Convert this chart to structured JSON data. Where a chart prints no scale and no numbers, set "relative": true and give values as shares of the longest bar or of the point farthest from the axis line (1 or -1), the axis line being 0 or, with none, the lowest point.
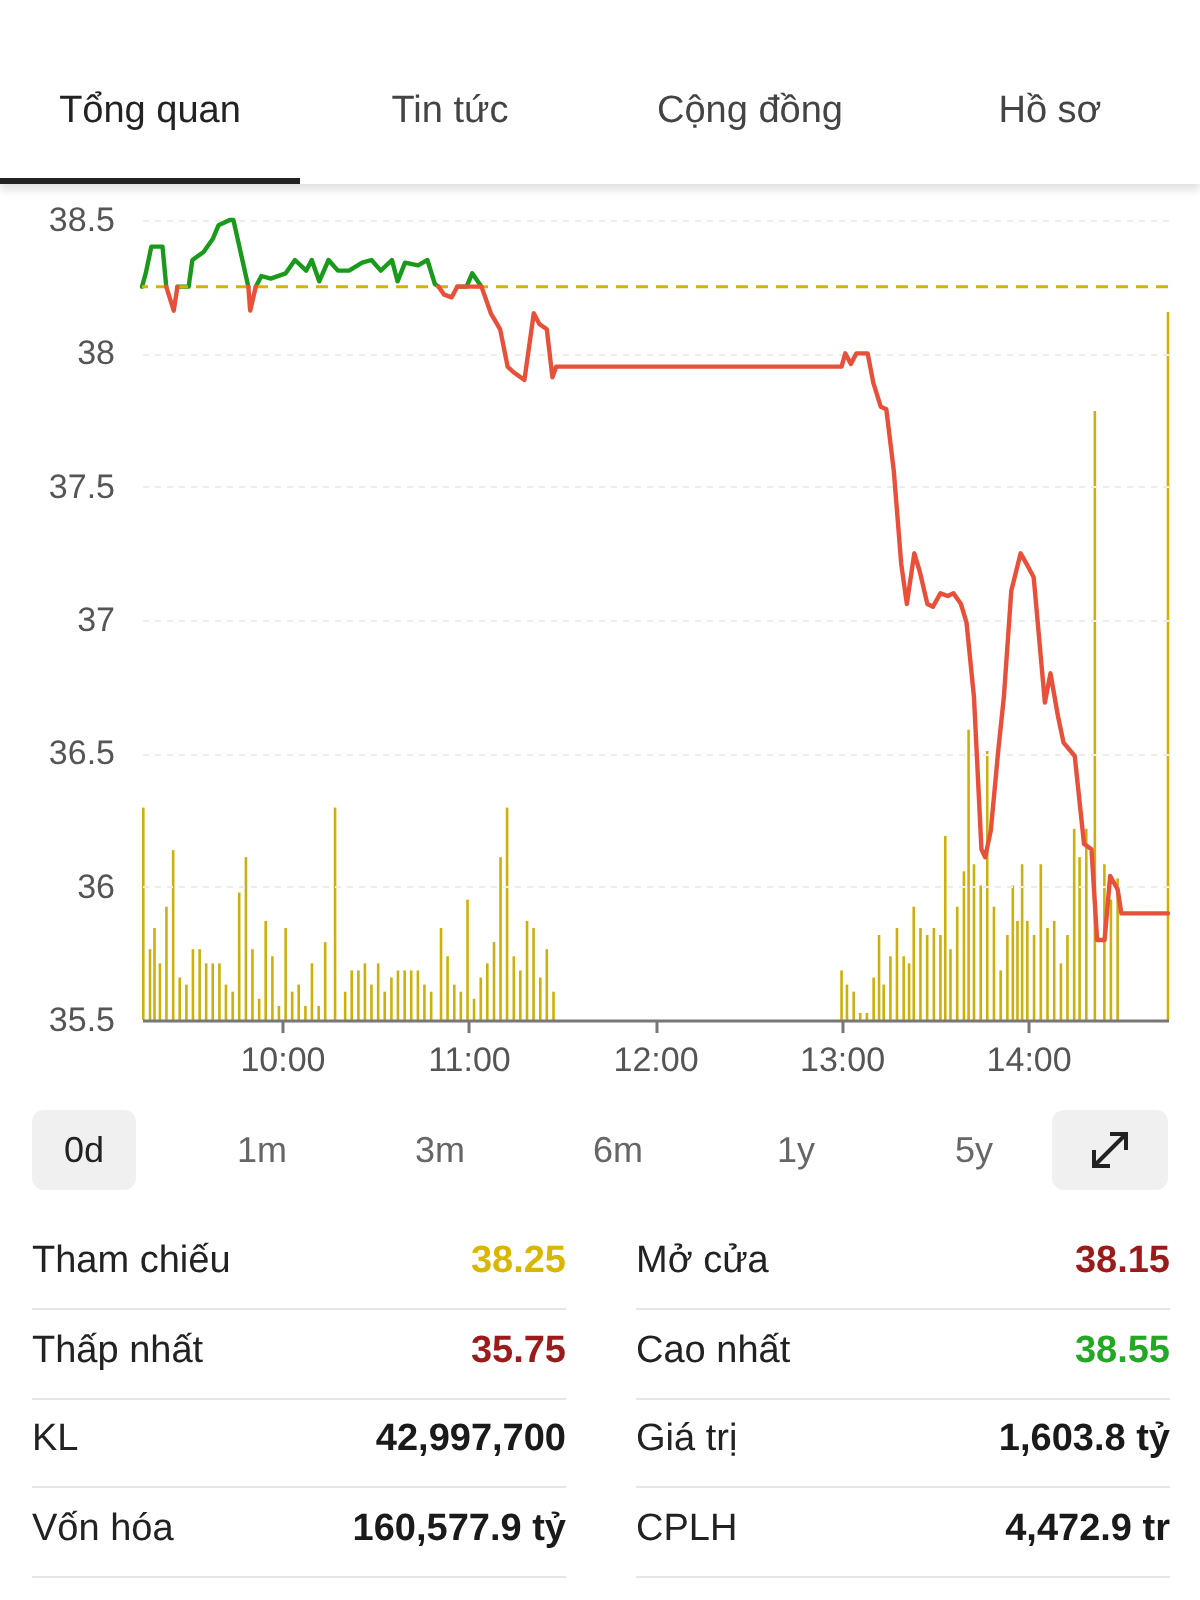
{
  "chart_data": [
    {
      "type": "other",
      "categories": [
        "Tổng quan",
        "Tin tức",
        "Cộng đồng",
        "Hồ sơ"
      ]
    },
    {
      "type": "line",
      "xlim": [
        9.25,
        14.75
      ],
      "xticks": [
        {
          "value": 10,
          "label": "10:00"
        },
        {
          "value": 11,
          "label": "11:00"
        },
        {
          "value": 12,
          "label": "12:00"
        },
        {
          "value": 13,
          "label": "13:00"
        },
        {
          "value": 14,
          "label": "14:00"
        }
      ],
      "ylim": [
        35.5,
        38.5
      ],
      "yticks": [
        35.5,
        36,
        36.5,
        37,
        37.5,
        38,
        38.5
      ],
      "grid": "y",
      "line_style": "solid",
      "marker": "none",
      "ref_lines": [
        {
          "axis": "y",
          "value": 38.25,
          "color": "#d4b400",
          "line_style": "dashed"
        }
      ],
      "series": [
        {
          "color": "#1a9a1a",
          "x": [
            9.25,
            9.27,
            9.3,
            9.36,
            9.38,
            9.42,
            9.44,
            9.5,
            9.52,
            9.58,
            9.63,
            9.66,
            9.72,
            9.74,
            9.82,
            9.83,
            9.86,
            9.89,
            9.94,
            10.02,
            10.07,
            10.13,
            10.16,
            10.2,
            10.25,
            10.3,
            10.36,
            10.43,
            10.48,
            10.53,
            10.59,
            10.62,
            10.66,
            10.73,
            10.78,
            10.82,
            10.84,
            10.87,
            10.91,
            10.94,
            10.99,
            11.02,
            11.07
          ],
          "values": [
            38.25,
            38.3,
            38.4,
            38.4,
            38.25,
            null,
            38.25,
            38.25,
            38.35,
            38.38,
            38.43,
            38.48,
            38.5,
            38.5,
            38.25,
            null,
            38.25,
            38.29,
            38.28,
            38.3,
            38.35,
            38.31,
            38.35,
            38.27,
            38.35,
            38.31,
            38.31,
            38.34,
            38.35,
            38.31,
            38.35,
            38.27,
            38.34,
            38.33,
            38.35,
            38.26,
            38.25,
            null,
            null,
            38.25,
            38.25,
            38.3,
            38.25
          ]
        },
        {
          "color": "#e8503a",
          "x": [
            9.38,
            9.42,
            9.44,
            9.6,
            9.82,
            9.83,
            9.86,
            10.3,
            10.84,
            10.87,
            10.91,
            10.94,
            11.07,
            11.12,
            11.17,
            11.21,
            11.24,
            11.3,
            11.35,
            11.38,
            11.42,
            11.45,
            11.47,
            13.0,
            13.02,
            13.05,
            13.08,
            13.14,
            13.17,
            13.21,
            13.24,
            13.28,
            13.32,
            13.35,
            13.39,
            13.42,
            13.46,
            13.49,
            13.53,
            13.57,
            13.6,
            13.64,
            13.67,
            13.71,
            13.75,
            13.77,
            13.8,
            13.84,
            13.87,
            13.91,
            13.96,
            14.0,
            14.03,
            14.09,
            14.12,
            14.16,
            14.19,
            14.25,
            14.3,
            14.34,
            14.37,
            14.41,
            14.44,
            14.48,
            14.5,
            14.75
          ],
          "values": [
            38.25,
            38.16,
            38.25,
            null,
            38.25,
            38.16,
            38.25,
            null,
            38.25,
            38.22,
            38.21,
            38.25,
            38.25,
            38.15,
            38.09,
            37.95,
            37.93,
            37.9,
            38.15,
            38.11,
            38.09,
            37.91,
            37.95,
            37.95,
            38.0,
            37.96,
            38.0,
            38.0,
            37.89,
            37.8,
            37.79,
            37.56,
            37.21,
            37.06,
            37.25,
            37.18,
            37.06,
            37.05,
            37.1,
            37.09,
            37.1,
            37.06,
            36.99,
            36.71,
            36.14,
            36.11,
            36.21,
            36.51,
            36.71,
            37.11,
            37.25,
            37.2,
            37.16,
            36.69,
            36.8,
            36.64,
            36.54,
            36.49,
            36.16,
            36.14,
            35.8,
            35.8,
            36.04,
            35.99,
            35.9,
            35.9
          ]
        }
      ]
    },
    {
      "type": "bar",
      "relative": true,
      "tick_labels": false,
      "color": "#cdb00c",
      "xlim": [
        9.25,
        14.75
      ],
      "x": [
        9.257,
        9.293,
        9.317,
        9.346,
        9.381,
        9.417,
        9.452,
        9.488,
        9.523,
        9.559,
        9.594,
        9.629,
        9.665,
        9.7,
        9.736,
        9.771,
        9.807,
        9.842,
        9.878,
        9.913,
        9.949,
        9.984,
        10.02,
        10.055,
        10.09,
        10.126,
        10.161,
        10.197,
        10.232,
        10.285,
        10.339,
        10.374,
        10.41,
        10.445,
        10.48,
        10.516,
        10.551,
        10.587,
        10.622,
        10.658,
        10.693,
        10.729,
        10.764,
        10.8,
        10.853,
        10.888,
        10.924,
        10.959,
        10.995,
        11.03,
        11.066,
        11.101,
        11.137,
        11.172,
        11.207,
        11.243,
        11.278,
        11.314,
        11.349,
        11.385,
        11.42,
        11.456,
        13.0,
        13.029,
        13.065,
        13.1,
        13.136,
        13.172,
        13.201,
        13.226,
        13.262,
        13.297,
        13.333,
        13.362,
        13.387,
        13.423,
        13.459,
        13.495,
        13.53,
        13.556,
        13.584,
        13.62,
        13.656,
        13.681,
        13.71,
        13.746,
        13.781,
        13.817,
        13.853,
        13.889,
        13.918,
        13.943,
        13.968,
        13.996,
        14.032,
        14.068,
        14.104,
        14.14,
        14.176,
        14.211,
        14.247,
        14.276,
        14.312,
        14.358,
        14.409,
        14.444,
        14.48,
        14.75
      ],
      "values": [
        0.3,
        0.1,
        0.13,
        0.08,
        0.16,
        0.24,
        0.06,
        0.05,
        0.1,
        0.1,
        0.08,
        0.08,
        0.08,
        0.05,
        0.04,
        0.18,
        0.23,
        0.1,
        0.03,
        0.14,
        0.09,
        0.02,
        0.13,
        0.04,
        0.05,
        0.02,
        0.08,
        0.02,
        0.11,
        0.3,
        0.04,
        0.07,
        0.07,
        0.08,
        0.05,
        0.08,
        0.04,
        0.06,
        0.07,
        0.07,
        0.07,
        0.07,
        0.05,
        0.04,
        0.13,
        0.09,
        0.05,
        0.04,
        0.17,
        0.03,
        0.06,
        0.08,
        0.11,
        0.23,
        0.3,
        0.09,
        0.07,
        0.14,
        0.13,
        0.06,
        0.1,
        0.04,
        0.07,
        0.05,
        0.04,
        0.01,
        0.01,
        0.06,
        0.12,
        0.05,
        0.09,
        0.13,
        0.09,
        0.08,
        0.16,
        0.13,
        0.12,
        0.13,
        0.12,
        0.26,
        0.1,
        0.16,
        0.21,
        0.41,
        0.22,
        0.19,
        0.38,
        0.16,
        0.07,
        0.12,
        0.19,
        0.14,
        0.22,
        0.14,
        0.12,
        0.22,
        0.13,
        0.14,
        0.08,
        0.12,
        0.27,
        0.23,
        0.27,
        0.86,
        0.22,
        0.17,
        0.2,
        1
      ]
    },
    {
      "type": "other",
      "categories": [
        "0d",
        "1m",
        "3m",
        "6m",
        "1y",
        "5y"
      ]
    },
    {
      "type": "other",
      "annotations": [
        "Tham chiếu",
        "38.25",
        "Mở cửa",
        "38.15",
        "Thấp nhất",
        "35.75",
        "Cao nhất",
        "38.55",
        "KL",
        "42,997,700",
        "Giá trị",
        "1,603.8 tỷ",
        "Vốn hóa",
        "160,577.9 tỷ",
        "CPLH",
        "4,472.9 tr"
      ],
      "colors": [
        "#222222",
        "#d9b600",
        "#222222",
        "#9b1b1b",
        "#222222",
        "#9b1b1b",
        "#222222",
        "#22a822",
        "#222222",
        "#1a1a1a",
        "#222222",
        "#1a1a1a",
        "#222222",
        "#1a1a1a",
        "#222222",
        "#1a1a1a"
      ]
    }
  ]
}
